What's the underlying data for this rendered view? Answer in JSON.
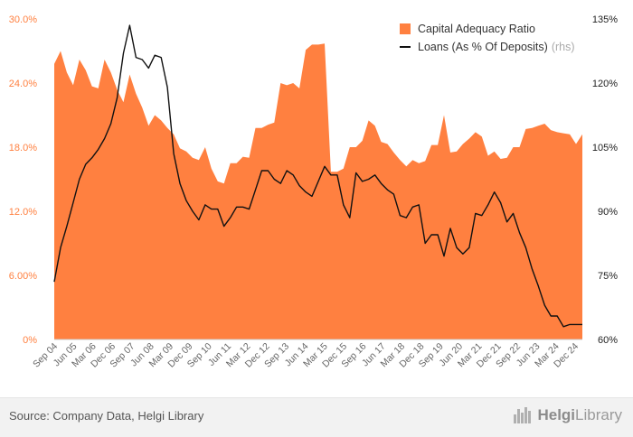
{
  "chart_data": {
    "type": "area+line",
    "left_axis": {
      "min": 0,
      "max": 30,
      "ticks": [
        "0%",
        "6.00%",
        "12.0%",
        "18.0%",
        "24.0%",
        "30.0%"
      ],
      "tick_values": [
        0,
        6,
        12,
        18,
        24,
        30
      ],
      "color": "#ff8040"
    },
    "right_axis": {
      "min": 60,
      "max": 135,
      "ticks": [
        "60%",
        "75%",
        "90%",
        "105%",
        "120%",
        "135%"
      ],
      "tick_values": [
        60,
        75,
        90,
        105,
        120,
        135
      ],
      "color": "#111111"
    },
    "x_tick_labels": [
      "Sep 04",
      "Jun 05",
      "Mar 06",
      "Dec 06",
      "Sep 07",
      "Jun 08",
      "Mar 09",
      "Dec 09",
      "Sep 10",
      "Jun 11",
      "Mar 12",
      "Dec 12",
      "Sep 13",
      "Jun 14",
      "Mar 15",
      "Dec 15",
      "Sep 16",
      "Jun 17",
      "Mar 18",
      "Dec 18",
      "Sep 19",
      "Jun 20",
      "Mar 21",
      "Dec 21",
      "Sep 22",
      "Jun 23",
      "Mar 24",
      "Dec 24"
    ],
    "x_start": "Sep 04",
    "x_end": "Mar 25",
    "series": [
      {
        "name": "Capital Adequacy Ratio",
        "type": "area",
        "axis": "left",
        "color": "#ff8040",
        "values": [
          25.8,
          27.0,
          25.0,
          23.8,
          26.2,
          25.2,
          23.7,
          23.5,
          26.2,
          25.0,
          23.4,
          22.2,
          24.8,
          23.0,
          21.7,
          20.0,
          21.0,
          20.5,
          19.8,
          19.2,
          17.9,
          17.6,
          17.0,
          16.8,
          18.0,
          16.0,
          14.8,
          14.6,
          16.5,
          16.5,
          17.1,
          17.0,
          19.8,
          19.8,
          20.1,
          20.3,
          24.0,
          23.8,
          24.0,
          23.5,
          27.1,
          27.6,
          27.6,
          27.7,
          15.7,
          15.7,
          16.0,
          18.0,
          18.0,
          18.6,
          20.5,
          20.0,
          18.5,
          18.3,
          17.5,
          16.8,
          16.2,
          16.8,
          16.5,
          16.7,
          18.2,
          18.2,
          21.0,
          17.5,
          17.6,
          18.3,
          18.8,
          19.4,
          19.0,
          17.2,
          17.6,
          16.9,
          17.0,
          18.0,
          18.0,
          19.7,
          19.8,
          20.0,
          20.2,
          19.6,
          19.4,
          19.3,
          19.2,
          18.3,
          19.2
        ]
      },
      {
        "name": "Loans (As % Of Deposits)",
        "type": "line",
        "axis": "right",
        "color": "#111111",
        "values": [
          73.5,
          81.5,
          86.5,
          92.0,
          97.5,
          101.0,
          102.5,
          104.5,
          107.0,
          110.5,
          116.5,
          127.0,
          133.5,
          126.0,
          125.5,
          123.5,
          126.5,
          126.0,
          119.0,
          103.5,
          96.5,
          92.5,
          90.0,
          88.0,
          91.5,
          90.5,
          90.5,
          86.5,
          88.5,
          91.0,
          91.0,
          90.5,
          95.0,
          99.5,
          99.5,
          97.5,
          96.5,
          99.5,
          98.5,
          96.0,
          94.5,
          93.5,
          97.0,
          100.5,
          98.5,
          98.5,
          91.5,
          88.5,
          99.0,
          97.0,
          97.5,
          98.5,
          96.5,
          95.0,
          94.0,
          89.0,
          88.5,
          91.0,
          91.5,
          82.5,
          84.5,
          84.5,
          79.5,
          86.0,
          81.5,
          80.0,
          81.5,
          89.5,
          89.0,
          91.5,
          94.5,
          92.0,
          87.5,
          89.5,
          85.0,
          81.5,
          76.5,
          72.5,
          68.0,
          65.5,
          65.5,
          63.0,
          63.5,
          63.5,
          63.5
        ]
      }
    ],
    "legend_position": "top-right",
    "grid": false,
    "legend": {
      "area_label": "Capital Adequacy Ratio",
      "line_label": "Loans (As % Of Deposits)",
      "line_suffix": "(rhs)"
    }
  },
  "footer": {
    "source": "Source: Company Data, Helgi Library",
    "logo_prefix": "Helgi",
    "logo_suffix": "Library"
  }
}
